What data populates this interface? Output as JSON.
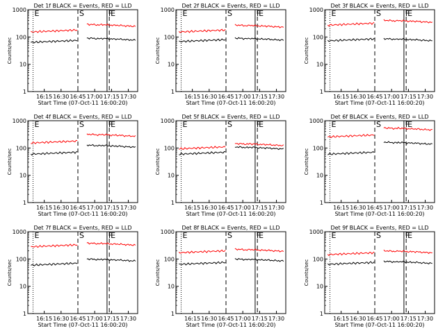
{
  "chart_data": [
    {
      "type": "line",
      "title": "Det 1f BLACK = Events, RED = LLD",
      "xlabel": "Start Time (07-Oct-11 16:00:20)",
      "ylabel": "Counts/sec",
      "yscale": "log",
      "ylim": [
        1,
        1000
      ],
      "xticks": [
        "16:15",
        "16:30",
        "16:45",
        "17:00",
        "17:15",
        "17:30"
      ],
      "ytick_labels": [
        "1",
        "10",
        "100",
        "1000"
      ],
      "markers": [
        {
          "label": "E",
          "style": "dotted",
          "time": "16:05"
        },
        {
          "label": "S",
          "style": "dashed",
          "time": "16:45"
        },
        {
          "label": "F",
          "style": "solid",
          "time": "17:11"
        },
        {
          "label": "E",
          "style": "dashed",
          "time": "17:13"
        }
      ],
      "series": [
        {
          "name": "Events",
          "color": "#000000",
          "level_before": 75,
          "level_after": 100
        },
        {
          "name": "LLD",
          "color": "#ff0000",
          "level_before": 180,
          "level_after": 320
        }
      ]
    },
    {
      "type": "line",
      "title": "Det 2f BLACK = Events, RED = LLD",
      "xlabel": "Start Time (07-Oct-11 16:00:20)",
      "ylabel": "Counts/sec",
      "yscale": "log",
      "ylim": [
        1,
        1000
      ],
      "xticks": [
        "16:15",
        "16:30",
        "16:45",
        "17:00",
        "17:15",
        "17:30"
      ],
      "ytick_labels": [
        "1",
        "10",
        "100",
        "1000"
      ],
      "markers": [
        {
          "label": "E",
          "style": "dotted",
          "time": "16:05"
        },
        {
          "label": "S",
          "style": "dashed",
          "time": "16:45"
        },
        {
          "label": "F",
          "style": "solid",
          "time": "17:11"
        },
        {
          "label": "E",
          "style": "dashed",
          "time": "17:13"
        }
      ],
      "series": [
        {
          "name": "Events",
          "color": "#000000",
          "level_before": 80,
          "level_after": 100
        },
        {
          "name": "LLD",
          "color": "#ff0000",
          "level_before": 180,
          "level_after": 300
        }
      ]
    },
    {
      "type": "line",
      "title": "Det 3f BLACK = Events, RED = LLD",
      "xlabel": "Start Time (07-Oct-11 16:00:20)",
      "ylabel": "Counts/sec",
      "yscale": "log",
      "ylim": [
        1,
        1000
      ],
      "xticks": [
        "16:15",
        "16:30",
        "16:45",
        "17:00",
        "17:15",
        "17:30"
      ],
      "ytick_labels": [
        "1",
        "10",
        "100",
        "1000"
      ],
      "markers": [
        {
          "label": "E",
          "style": "dotted",
          "time": "16:05"
        },
        {
          "label": "S",
          "style": "dashed",
          "time": "16:45"
        },
        {
          "label": "F",
          "style": "solid",
          "time": "17:11"
        },
        {
          "label": "E",
          "style": "dashed",
          "time": "17:13"
        }
      ],
      "series": [
        {
          "name": "Events",
          "color": "#000000",
          "level_before": 85,
          "level_after": 95
        },
        {
          "name": "LLD",
          "color": "#ff0000",
          "level_before": 320,
          "level_after": 450
        }
      ]
    },
    {
      "type": "line",
      "title": "Det 4f BLACK = Events, RED = LLD",
      "xlabel": "Start Time (07-Oct-11 16:00:20)",
      "ylabel": "Counts/sec",
      "yscale": "log",
      "ylim": [
        1,
        1000
      ],
      "xticks": [
        "16:15",
        "16:30",
        "16:45",
        "17:00",
        "17:15",
        "17:30"
      ],
      "ytick_labels": [
        "1",
        "10",
        "100",
        "1000"
      ],
      "markers": [
        {
          "label": "E",
          "style": "dotted",
          "time": "16:05"
        },
        {
          "label": "S",
          "style": "dashed",
          "time": "16:45"
        },
        {
          "label": "F",
          "style": "solid",
          "time": "17:11"
        },
        {
          "label": "E",
          "style": "dashed",
          "time": "17:13"
        }
      ],
      "series": [
        {
          "name": "Events",
          "color": "#000000",
          "level_before": 70,
          "level_after": 140
        },
        {
          "name": "LLD",
          "color": "#ff0000",
          "level_before": 180,
          "level_after": 350
        }
      ]
    },
    {
      "type": "line",
      "title": "Det 5f BLACK = Events, RED = LLD",
      "xlabel": "Start Time (07-Oct-11 16:00:20)",
      "ylabel": "Counts/sec",
      "yscale": "log",
      "ylim": [
        1,
        1000
      ],
      "xticks": [
        "16:15",
        "16:30",
        "16:45",
        "17:00",
        "17:15",
        "17:30"
      ],
      "ytick_labels": [
        "1",
        "10",
        "100",
        "1000"
      ],
      "markers": [
        {
          "label": "E",
          "style": "dotted",
          "time": "16:05"
        },
        {
          "label": "S",
          "style": "dashed",
          "time": "16:45"
        },
        {
          "label": "F",
          "style": "solid",
          "time": "17:11"
        },
        {
          "label": "E",
          "style": "dashed",
          "time": "17:13"
        }
      ],
      "series": [
        {
          "name": "Events",
          "color": "#000000",
          "level_before": 70,
          "level_after": 120
        },
        {
          "name": "LLD",
          "color": "#ff0000",
          "level_before": 110,
          "level_after": 160
        }
      ]
    },
    {
      "type": "line",
      "title": "Det 6f BLACK = Events, RED = LLD",
      "xlabel": "Start Time (07-Oct-11 16:00:20)",
      "ylabel": "Counts/sec",
      "yscale": "log",
      "ylim": [
        1,
        1000
      ],
      "xticks": [
        "16:15",
        "16:30",
        "16:45",
        "17:00",
        "17:15",
        "17:30"
      ],
      "ytick_labels": [
        "1",
        "10",
        "100",
        "1000"
      ],
      "markers": [
        {
          "label": "E",
          "style": "dotted",
          "time": "16:05"
        },
        {
          "label": "S",
          "style": "dashed",
          "time": "16:45"
        },
        {
          "label": "F",
          "style": "solid",
          "time": "17:11"
        },
        {
          "label": "E",
          "style": "dashed",
          "time": "17:13"
        }
      ],
      "series": [
        {
          "name": "Events",
          "color": "#000000",
          "level_before": 70,
          "level_after": 180
        },
        {
          "name": "LLD",
          "color": "#ff0000",
          "level_before": 300,
          "level_after": 600
        }
      ]
    },
    {
      "type": "line",
      "title": "Det 7f BLACK = Events, RED = LLD",
      "xlabel": "Start Time (07-Oct-11 16:00:20)",
      "ylabel": "Counts/sec",
      "yscale": "log",
      "ylim": [
        1,
        1000
      ],
      "xticks": [
        "16:15",
        "16:30",
        "16:45",
        "17:00",
        "17:15",
        "17:30"
      ],
      "ytick_labels": [
        "1",
        "10",
        "100",
        "1000"
      ],
      "markers": [
        {
          "label": "E",
          "style": "dotted",
          "time": "16:05"
        },
        {
          "label": "S",
          "style": "dashed",
          "time": "16:45"
        },
        {
          "label": "F",
          "style": "solid",
          "time": "17:11"
        },
        {
          "label": "E",
          "style": "dashed",
          "time": "17:13"
        }
      ],
      "series": [
        {
          "name": "Events",
          "color": "#000000",
          "level_before": 70,
          "level_after": 110
        },
        {
          "name": "LLD",
          "color": "#ff0000",
          "level_before": 330,
          "level_after": 420
        }
      ]
    },
    {
      "type": "line",
      "title": "Det 8f BLACK = Events, RED = LLD",
      "xlabel": "Start Time (07-Oct-11 16:00:20)",
      "ylabel": "Counts/sec",
      "yscale": "log",
      "ylim": [
        1,
        1000
      ],
      "xticks": [
        "16:15",
        "16:30",
        "16:45",
        "17:00",
        "17:15",
        "17:30"
      ],
      "ytick_labels": [
        "1",
        "10",
        "100",
        "1000"
      ],
      "markers": [
        {
          "label": "E",
          "style": "dotted",
          "time": "16:05"
        },
        {
          "label": "S",
          "style": "dashed",
          "time": "16:45"
        },
        {
          "label": "F",
          "style": "solid",
          "time": "17:11"
        },
        {
          "label": "E",
          "style": "dashed",
          "time": "17:13"
        }
      ],
      "series": [
        {
          "name": "Events",
          "color": "#000000",
          "level_before": 75,
          "level_after": 110
        },
        {
          "name": "LLD",
          "color": "#ff0000",
          "level_before": 200,
          "level_after": 250
        }
      ]
    },
    {
      "type": "line",
      "title": "Det 9f BLACK = Events, RED = LLD",
      "xlabel": "Start Time (07-Oct-11 16:00:20)",
      "ylabel": "Counts/sec",
      "yscale": "log",
      "ylim": [
        1,
        1000
      ],
      "xticks": [
        "16:15",
        "16:30",
        "16:45",
        "17:00",
        "17:15",
        "17:30"
      ],
      "ytick_labels": [
        "1",
        "10",
        "100",
        "1000"
      ],
      "markers": [
        {
          "label": "E",
          "style": "dotted",
          "time": "16:05"
        },
        {
          "label": "S",
          "style": "dashed",
          "time": "16:45"
        },
        {
          "label": "F",
          "style": "solid",
          "time": "17:11"
        },
        {
          "label": "E",
          "style": "dashed",
          "time": "17:13"
        }
      ],
      "series": [
        {
          "name": "Events",
          "color": "#000000",
          "level_before": 75,
          "level_after": 90
        },
        {
          "name": "LLD",
          "color": "#ff0000",
          "level_before": 170,
          "level_after": 220
        }
      ]
    }
  ]
}
